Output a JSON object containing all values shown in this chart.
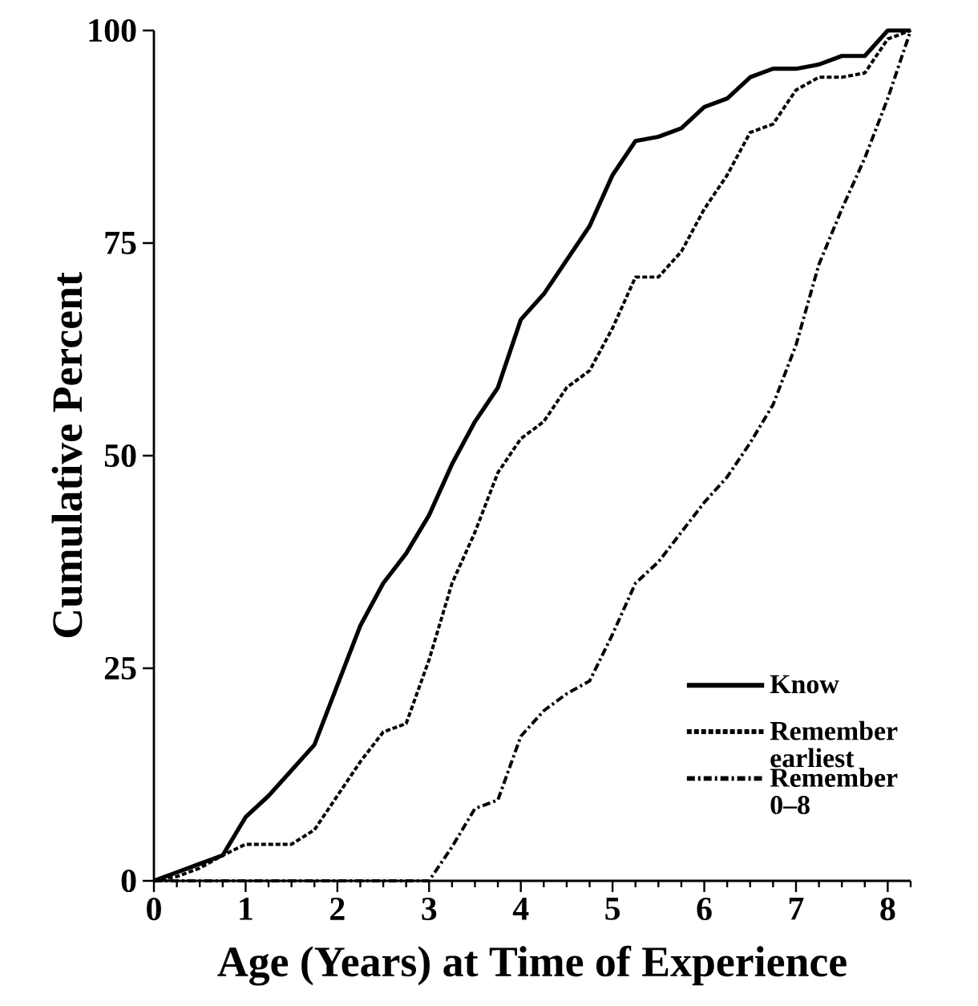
{
  "chart_data": {
    "type": "line",
    "xlabel": "Age (Years) at Time of Experience",
    "ylabel": "Cumulative Percent",
    "xlim": [
      0,
      8.25
    ],
    "ylim": [
      0,
      100
    ],
    "xticks": [
      0,
      {
        "value": 0.25,
        "label": null
      },
      {
        "value": 0.5,
        "label": null
      },
      {
        "value": 0.75,
        "label": null
      },
      1,
      {
        "value": 1.25,
        "label": null
      },
      {
        "value": 1.5,
        "label": null
      },
      {
        "value": 1.75,
        "label": null
      },
      2,
      {
        "value": 2.25,
        "label": null
      },
      {
        "value": 2.5,
        "label": null
      },
      {
        "value": 2.75,
        "label": null
      },
      3,
      {
        "value": 3.25,
        "label": null
      },
      {
        "value": 3.5,
        "label": null
      },
      {
        "value": 3.75,
        "label": null
      },
      4,
      {
        "value": 4.25,
        "label": null
      },
      {
        "value": 4.5,
        "label": null
      },
      {
        "value": 4.75,
        "label": null
      },
      5,
      {
        "value": 5.25,
        "label": null
      },
      {
        "value": 5.5,
        "label": null
      },
      {
        "value": 5.75,
        "label": null
      },
      6,
      {
        "value": 6.25,
        "label": null
      },
      {
        "value": 6.5,
        "label": null
      },
      {
        "value": 6.75,
        "label": null
      },
      7,
      {
        "value": 7.25,
        "label": null
      },
      {
        "value": 7.5,
        "label": null
      },
      {
        "value": 7.75,
        "label": null
      },
      8,
      {
        "value": 8.25,
        "label": null
      }
    ],
    "yticks": [
      0,
      25,
      50,
      75,
      100
    ],
    "x": [
      0,
      0.25,
      0.5,
      0.75,
      1,
      1.25,
      1.5,
      1.75,
      2,
      2.25,
      2.5,
      2.75,
      3,
      3.25,
      3.5,
      3.75,
      4,
      4.25,
      4.5,
      4.75,
      5,
      5.25,
      5.5,
      5.75,
      6,
      6.25,
      6.5,
      6.75,
      7,
      7.25,
      7.5,
      7.75,
      8,
      8.25
    ],
    "legend": "bottom right",
    "grid": false,
    "marker": "none",
    "series": [
      {
        "name": "Know",
        "color": "#000000",
        "line_style": "solid",
        "values": [
          0,
          1,
          2,
          3,
          7.5,
          10,
          13,
          16,
          23,
          30,
          35,
          38.5,
          43,
          49,
          54,
          58,
          66,
          69,
          73,
          77,
          83,
          87,
          87.5,
          88.5,
          91,
          92,
          94.5,
          95.5,
          95.5,
          96,
          97,
          97,
          100,
          100
        ]
      },
      {
        "name": "Remember earliest",
        "color": "#000000",
        "line_style": "dashed",
        "values": [
          0,
          0.5,
          1.5,
          3,
          4.3,
          4.3,
          4.3,
          6,
          10,
          14,
          17.5,
          18.5,
          26,
          35,
          41,
          48,
          52,
          54,
          58,
          60,
          65,
          71,
          71,
          74,
          79,
          83,
          88,
          89,
          93,
          94.5,
          94.5,
          95,
          99,
          100
        ]
      },
      {
        "name": "Remember 0–8",
        "color": "#000000",
        "line_style": "dashdot",
        "values": [
          0,
          0,
          0,
          0,
          0,
          0,
          0,
          0,
          0,
          0,
          0,
          0,
          0,
          4,
          8.5,
          9.5,
          17,
          20,
          22,
          23.5,
          29,
          35,
          37.5,
          41,
          44.5,
          47.5,
          51.5,
          56,
          63,
          72.5,
          79,
          85,
          92,
          100
        ]
      }
    ]
  }
}
